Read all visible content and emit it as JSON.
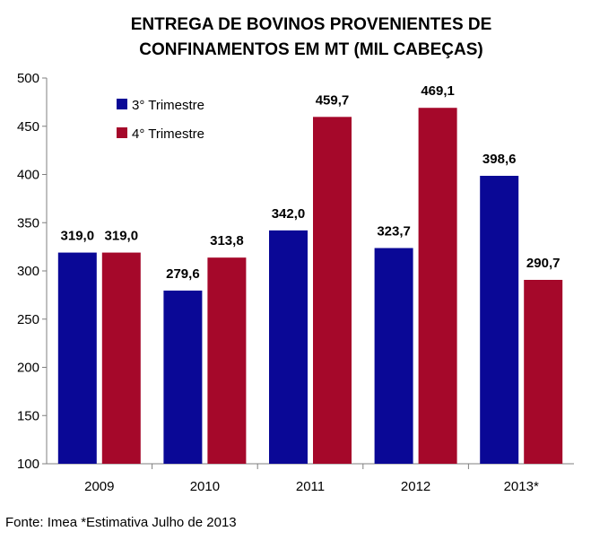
{
  "chart_data": {
    "type": "bar",
    "title_lines": [
      "ENTREGA DE BOVINOS PROVENIENTES DE",
      "CONFINAMENTOS EM MT (MIL CABEÇAS)"
    ],
    "categories": [
      "2009",
      "2010",
      "2011",
      "2012",
      "2013*"
    ],
    "series": [
      {
        "name": "3° Trimestre",
        "color": "#0a0896",
        "values": [
          319.0,
          279.6,
          342.0,
          323.7,
          398.6
        ],
        "labels": [
          "319,0",
          "279,6",
          "342,0",
          "323,7",
          "398,6"
        ]
      },
      {
        "name": "4° Trimestre",
        "color": "#a5082a",
        "values": [
          319.0,
          313.8,
          459.7,
          469.1,
          290.7
        ],
        "labels": [
          "319,0",
          "313,8",
          "459,7",
          "469,1",
          "290,7"
        ]
      }
    ],
    "ylim": [
      100,
      500
    ],
    "yticks": [
      100,
      150,
      200,
      250,
      300,
      350,
      400,
      450,
      500
    ],
    "ytick_labels": [
      "100",
      "150",
      "200",
      "250",
      "300",
      "350",
      "400",
      "450",
      "500"
    ],
    "grid": false,
    "legend_position": "top-left",
    "xlabel": "",
    "ylabel": ""
  },
  "footnote": "Fonte: Imea *Estimativa Julho de 2013"
}
